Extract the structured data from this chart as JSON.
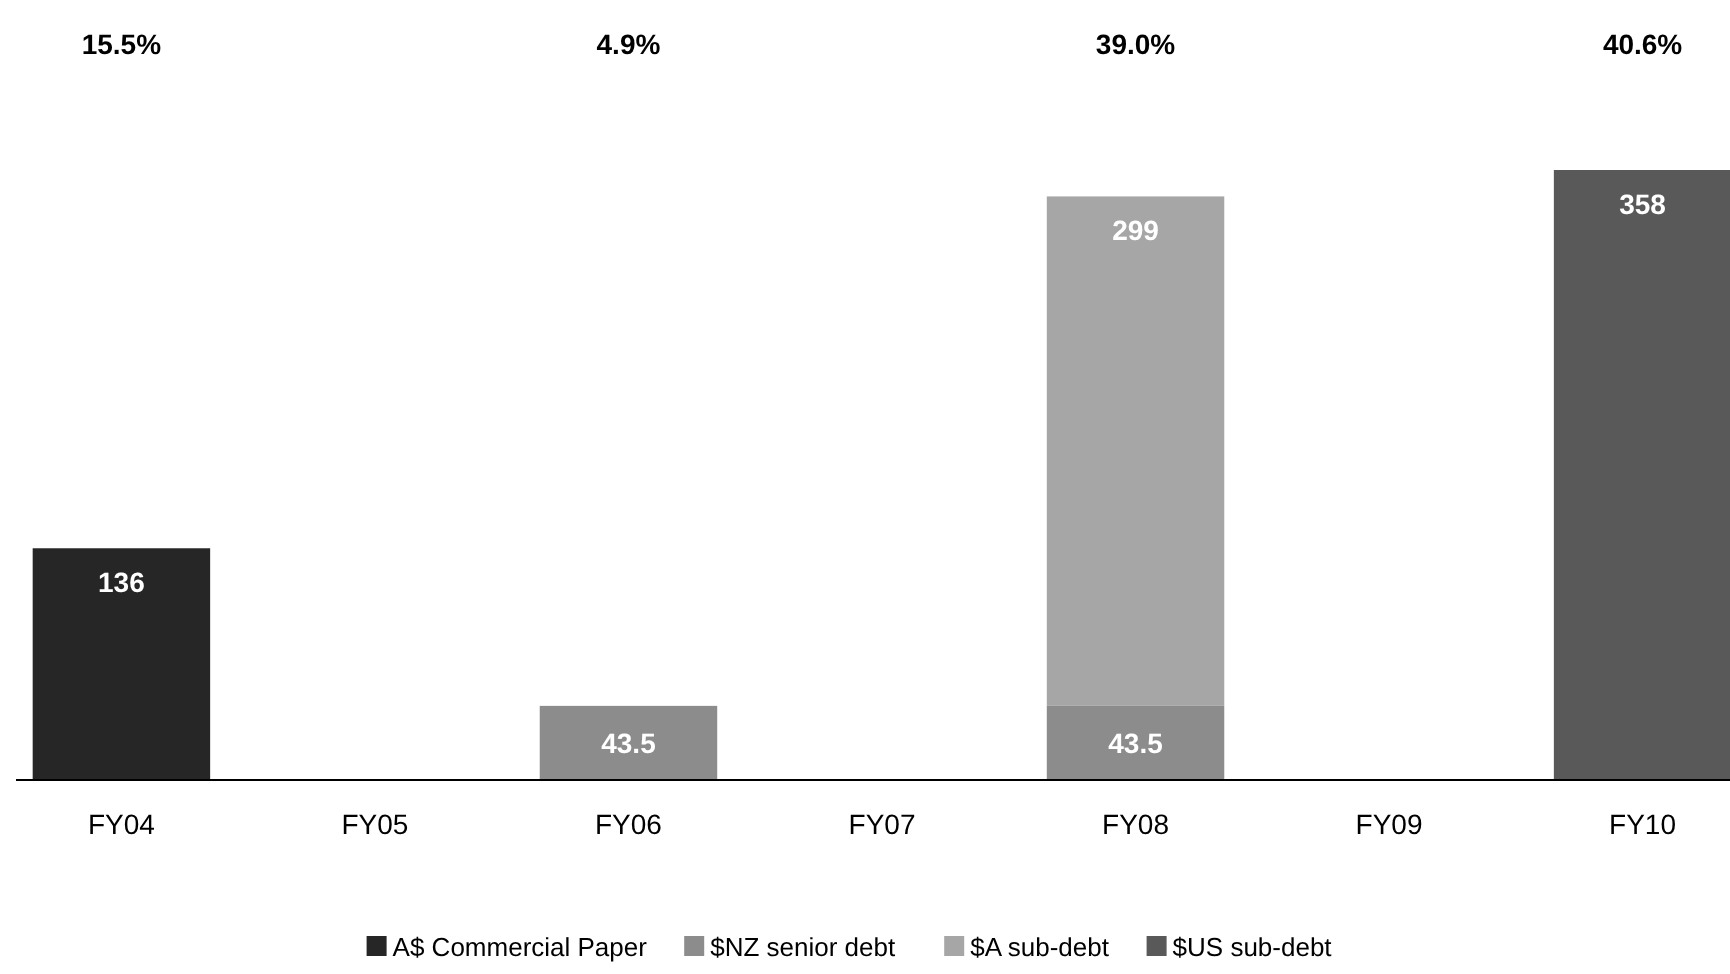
{
  "chart_data": {
    "type": "bar",
    "stacked": true,
    "categories": [
      "FY04",
      "FY05",
      "FY06",
      "FY07",
      "FY08",
      "FY09",
      "FY10"
    ],
    "series": [
      {
        "name": "A$ Commercial Paper",
        "color": "#262626",
        "values": [
          136,
          null,
          null,
          null,
          null,
          null,
          null
        ]
      },
      {
        "name": "$NZ senior debt",
        "color": "#8c8c8c",
        "values": [
          null,
          null,
          43.5,
          null,
          43.5,
          null,
          null
        ]
      },
      {
        "name": "$A sub-debt",
        "color": "#a6a6a6",
        "values": [
          null,
          null,
          null,
          null,
          299,
          null,
          null
        ]
      },
      {
        "name": "$US sub-debt",
        "color": "#595959",
        "values": [
          null,
          null,
          null,
          null,
          null,
          null,
          358
        ]
      }
    ],
    "data_labels": true,
    "legend": "bottom",
    "annotations": [
      "15.5%",
      "4.9%",
      "39.0%",
      "40.6%"
    ]
  }
}
